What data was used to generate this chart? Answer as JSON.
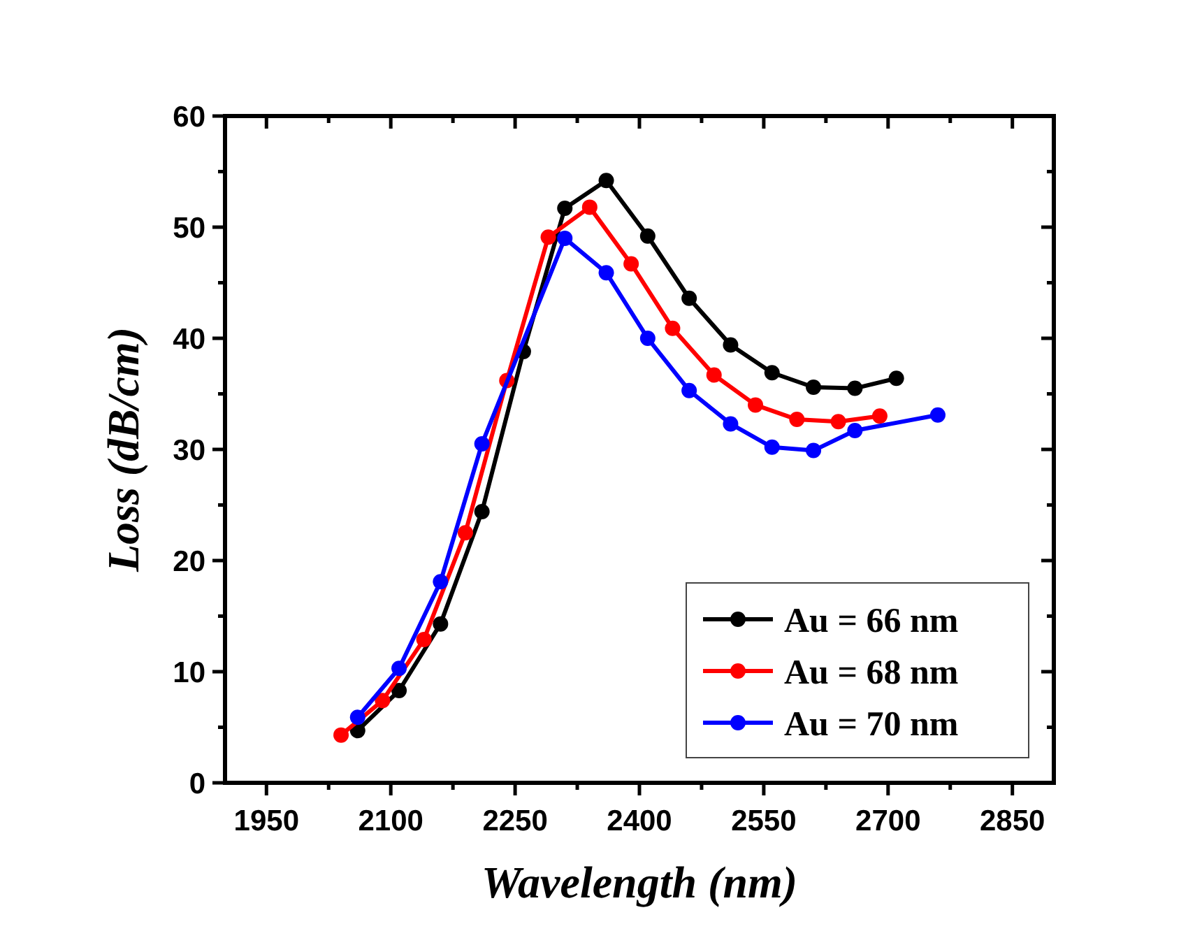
{
  "chart_data": {
    "type": "line",
    "xlabel": "Wavelength (nm)",
    "ylabel": "Loss (dB/cm)",
    "xlim": [
      1900,
      2900
    ],
    "xticks": [
      {
        "value": 1950,
        "label": "1950"
      },
      {
        "value": 2025,
        "label": null
      },
      {
        "value": 2100,
        "label": "2100"
      },
      {
        "value": 2175,
        "label": null
      },
      {
        "value": 2250,
        "label": "2250"
      },
      {
        "value": 2325,
        "label": null
      },
      {
        "value": 2400,
        "label": "2400"
      },
      {
        "value": 2475,
        "label": null
      },
      {
        "value": 2550,
        "label": "2550"
      },
      {
        "value": 2625,
        "label": null
      },
      {
        "value": 2700,
        "label": "2700"
      },
      {
        "value": 2775,
        "label": null
      },
      {
        "value": 2850,
        "label": "2850"
      }
    ],
    "ylim": [
      0,
      60
    ],
    "yticks": [
      {
        "value": 0,
        "label": "0"
      },
      {
        "value": 5,
        "label": null
      },
      {
        "value": 10,
        "label": "10"
      },
      {
        "value": 15,
        "label": null
      },
      {
        "value": 20,
        "label": "20"
      },
      {
        "value": 25,
        "label": null
      },
      {
        "value": 30,
        "label": "30"
      },
      {
        "value": 35,
        "label": null
      },
      {
        "value": 40,
        "label": "40"
      },
      {
        "value": 45,
        "label": null
      },
      {
        "value": 50,
        "label": "50"
      },
      {
        "value": 55,
        "label": null
      },
      {
        "value": 60,
        "label": "60"
      }
    ],
    "grid": false,
    "legend": "bottom right",
    "marker": "circle",
    "line_style": "solid",
    "series": [
      {
        "name": "Au = 66 nm",
        "color": "#000000",
        "x": [
          2060,
          2110,
          2160,
          2210,
          2260,
          2310,
          2360,
          2410,
          2460,
          2510,
          2560,
          2610,
          2660,
          2710
        ],
        "values": [
          4.7,
          8.3,
          14.3,
          24.4,
          38.8,
          51.7,
          54.2,
          49.2,
          43.6,
          39.4,
          36.9,
          35.6,
          35.5,
          36.4
        ]
      },
      {
        "name": "Au = 68 nm",
        "color": "#ff0000",
        "x": [
          2040,
          2090,
          2140,
          2190,
          2240,
          2290,
          2340,
          2390,
          2440,
          2490,
          2540,
          2590,
          2640,
          2690
        ],
        "values": [
          4.3,
          7.4,
          12.9,
          22.5,
          36.2,
          49.1,
          51.8,
          46.7,
          40.9,
          36.7,
          34.0,
          32.7,
          32.5,
          33.0
        ]
      },
      {
        "name": "Au = 70 nm",
        "color": "#0000ff",
        "x": [
          2060,
          2110,
          2160,
          2210,
          2310,
          2360,
          2410,
          2460,
          2510,
          2560,
          2610,
          2660,
          2760
        ],
        "values": [
          5.9,
          10.3,
          18.1,
          30.5,
          49.0,
          45.9,
          40.0,
          35.3,
          32.3,
          30.2,
          29.9,
          31.7,
          33.1
        ]
      }
    ]
  }
}
